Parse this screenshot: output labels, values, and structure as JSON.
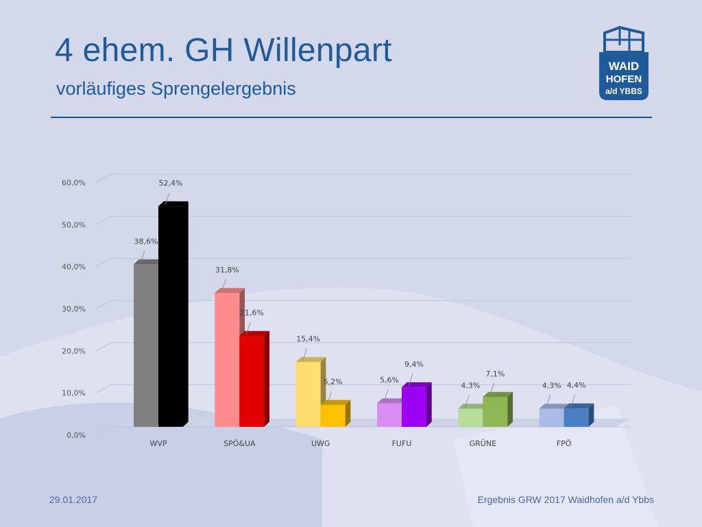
{
  "slide": {
    "title": "4 ehem. GH Willenpart",
    "subtitle": "vorläufiges Sprengelergebnis",
    "logo": {
      "line1": "WAID",
      "line2": "HOFEN",
      "line3": "a/d YBBS"
    },
    "footer_left": "29.01.2017",
    "footer_right": "Ergebnis GRW 2017 Waidhofen a/d Ybbs"
  },
  "chart_data": {
    "type": "bar",
    "categories": [
      "WVP",
      "SPÖ&UA",
      "UWG",
      "FUFU",
      "GRÜNE",
      "FPÖ"
    ],
    "series": [
      {
        "values": [
          38.6,
          31.8,
          15.4,
          5.6,
          4.3,
          4.3
        ]
      },
      {
        "values": [
          52.4,
          21.6,
          5.2,
          9.4,
          7.1,
          4.4
        ]
      }
    ],
    "value_labels": [
      [
        "38,6%",
        "31,8%",
        "15,4%",
        "5,6%",
        "4,3%",
        "4,3%"
      ],
      [
        "52,4%",
        "21,6%",
        "5,2%",
        "9,4%",
        "7,1%",
        "4,4%"
      ]
    ],
    "ylim": [
      0,
      60
    ],
    "yticks": [
      "0,0%",
      "10,0%",
      "20,0%",
      "30,0%",
      "40,0%",
      "50,0%",
      "60,0%"
    ],
    "grid": true,
    "colors": [
      [
        "#808080",
        "#000000"
      ],
      [
        "#ff8c8c",
        "#e00000"
      ],
      [
        "#ffdd6e",
        "#ffc000"
      ],
      [
        "#d98cf2",
        "#9b00f0"
      ],
      [
        "#b6dd9a",
        "#8fb854"
      ],
      [
        "#a9bce6",
        "#4a7fc4"
      ]
    ],
    "title": "",
    "xlabel": "",
    "ylabel": ""
  }
}
